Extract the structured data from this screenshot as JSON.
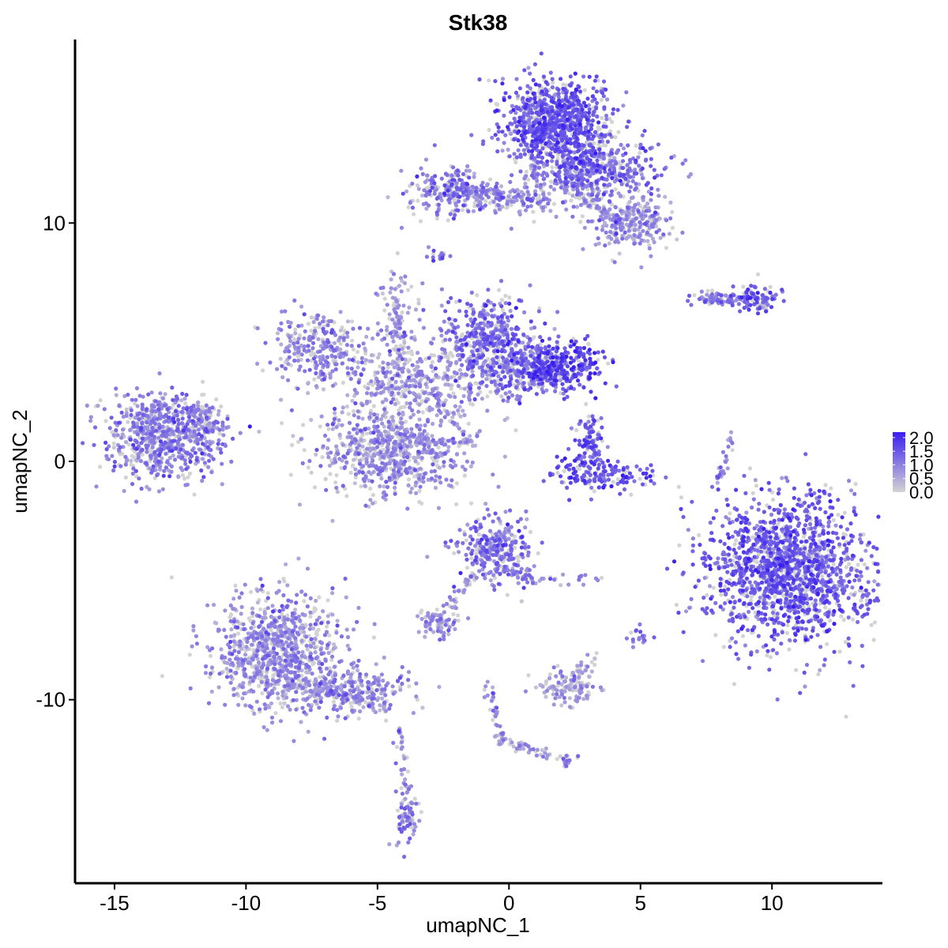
{
  "chart_data": {
    "type": "scatter",
    "title": "Stk38",
    "xlabel": "umapNC_1",
    "ylabel": "umapNC_2",
    "xlim": [
      -16.5,
      14.2
    ],
    "ylim": [
      -17.7,
      17.7
    ],
    "xticks": [
      -15,
      -10,
      -5,
      0,
      5,
      10
    ],
    "xtick_labels": [
      "-15",
      "-10",
      "-5",
      "0",
      "5",
      "10"
    ],
    "yticks": [
      -10,
      0,
      10
    ],
    "ytick_labels": [
      "-10",
      "0",
      "10"
    ],
    "grid": false,
    "legend": {
      "position": "right",
      "color_low": "#d3d3d3",
      "color_high": "#3a1ef0",
      "range": [
        0,
        2.2
      ],
      "ticks": [
        0.0,
        0.5,
        1.0,
        1.5,
        2.0
      ],
      "tick_labels": [
        "0.0",
        "0.5",
        "1.0",
        "1.5",
        "2.0"
      ]
    },
    "clusters": [
      {
        "cx": -13.2,
        "cy": 1.0,
        "sx": 1.1,
        "sy": 0.9,
        "n": 700,
        "expr": 1.0
      },
      {
        "cx": -11.8,
        "cy": 1.8,
        "sx": 0.5,
        "sy": 0.4,
        "n": 90,
        "expr": 0.9
      },
      {
        "cx": -7.2,
        "cy": 4.8,
        "sx": 0.9,
        "sy": 0.7,
        "n": 260,
        "expr": 0.9
      },
      {
        "cx": -4.5,
        "cy": 0.3,
        "sx": 1.4,
        "sy": 0.9,
        "n": 650,
        "expr": 0.8
      },
      {
        "cx": -3.6,
        "cy": 3.4,
        "sx": 1.6,
        "sy": 0.9,
        "n": 420,
        "expr": 0.7
      },
      {
        "cx": -4.2,
        "cy": 6.0,
        "sx": 0.4,
        "sy": 1.3,
        "n": 80,
        "expr": 0.8
      },
      {
        "cx": -0.8,
        "cy": 5.2,
        "sx": 0.9,
        "sy": 0.9,
        "n": 420,
        "expr": 1.2
      },
      {
        "cx": 1.9,
        "cy": 4.0,
        "sx": 0.9,
        "sy": 0.5,
        "n": 320,
        "expr": 1.7
      },
      {
        "cx": 0.5,
        "cy": 3.8,
        "sx": 0.9,
        "sy": 0.5,
        "n": 220,
        "expr": 1.1
      },
      {
        "cx": 1.7,
        "cy": 14.2,
        "sx": 1.0,
        "sy": 0.9,
        "n": 900,
        "expr": 1.4
      },
      {
        "cx": 3.3,
        "cy": 12.2,
        "sx": 1.2,
        "sy": 0.6,
        "n": 450,
        "expr": 1.2
      },
      {
        "cx": 4.6,
        "cy": 10.0,
        "sx": 0.8,
        "sy": 0.6,
        "n": 250,
        "expr": 0.8
      },
      {
        "cx": -2.2,
        "cy": 11.3,
        "sx": 0.8,
        "sy": 0.5,
        "n": 200,
        "expr": 1.1
      },
      {
        "cx": 0.0,
        "cy": 11.0,
        "sx": 1.2,
        "sy": 0.3,
        "n": 120,
        "expr": 0.9
      },
      {
        "cx": 3.4,
        "cy": -0.6,
        "sx": 0.9,
        "sy": 0.35,
        "n": 160,
        "expr": 1.5
      },
      {
        "cx": 3.0,
        "cy": 0.8,
        "sx": 0.35,
        "sy": 0.6,
        "n": 80,
        "expr": 1.5
      },
      {
        "cx": 10.6,
        "cy": -4.6,
        "sx": 1.6,
        "sy": 1.5,
        "n": 1600,
        "expr": 1.4
      },
      {
        "cx": -8.8,
        "cy": -8.0,
        "sx": 1.2,
        "sy": 1.2,
        "n": 900,
        "expr": 0.8
      },
      {
        "cx": -6.0,
        "cy": -9.6,
        "sx": 1.2,
        "sy": 0.5,
        "n": 260,
        "expr": 0.8
      },
      {
        "cx": -3.9,
        "cy": -15.0,
        "sx": 0.25,
        "sy": 0.5,
        "n": 70,
        "expr": 1.0
      },
      {
        "cx": -0.5,
        "cy": -3.7,
        "sx": 0.7,
        "sy": 0.7,
        "n": 300,
        "expr": 1.1
      },
      {
        "cx": -2.7,
        "cy": -6.8,
        "sx": 0.4,
        "sy": 0.35,
        "n": 70,
        "expr": 0.9
      },
      {
        "cx": 2.3,
        "cy": -9.5,
        "sx": 0.6,
        "sy": 0.35,
        "n": 110,
        "expr": 0.6
      },
      {
        "cx": 9.4,
        "cy": 6.8,
        "sx": 0.5,
        "sy": 0.3,
        "n": 90,
        "expr": 1.4
      },
      {
        "cx": 7.9,
        "cy": 6.8,
        "sx": 0.6,
        "sy": 0.15,
        "n": 50,
        "expr": 1.0
      },
      {
        "cx": -2.7,
        "cy": 8.6,
        "sx": 0.2,
        "sy": 0.2,
        "n": 15,
        "expr": 1.1
      },
      {
        "cx": 2.3,
        "cy": -12.6,
        "sx": 0.2,
        "sy": 0.2,
        "n": 15,
        "expr": 1.0
      },
      {
        "cx": 4.9,
        "cy": -7.4,
        "sx": 0.25,
        "sy": 0.2,
        "n": 18,
        "expr": 1.0
      }
    ],
    "strands": [
      {
        "x1": -11.6,
        "y1": 1.4,
        "x2": -10.9,
        "y2": 1.4,
        "n": 15,
        "expr": 0.9
      },
      {
        "x1": -4.2,
        "y1": 1.0,
        "x2": -1.4,
        "y2": 0.7,
        "n": 40,
        "expr": 0.7
      },
      {
        "x1": -4.2,
        "y1": 4.0,
        "x2": -4.3,
        "y2": 6.9,
        "n": 35,
        "expr": 0.8
      },
      {
        "x1": -2.9,
        "y1": 3.0,
        "x2": -1.4,
        "y2": 0.7,
        "n": 30,
        "expr": 0.8
      },
      {
        "x1": -8.3,
        "y1": -9.3,
        "x2": -4.5,
        "y2": -10.4,
        "n": 80,
        "expr": 0.8
      },
      {
        "x1": -4.2,
        "y1": -11.2,
        "x2": -3.8,
        "y2": -14.3,
        "n": 40,
        "expr": 0.8
      },
      {
        "x1": -2.6,
        "y1": -6.8,
        "x2": -1.2,
        "y2": -4.5,
        "n": 45,
        "expr": 0.7
      },
      {
        "x1": -0.1,
        "y1": -4.5,
        "x2": 1.2,
        "y2": -5.2,
        "n": 30,
        "expr": 0.9
      },
      {
        "x1": -0.7,
        "y1": -9.3,
        "x2": -0.3,
        "y2": -11.8,
        "n": 40,
        "expr": 0.7
      },
      {
        "x1": -0.3,
        "y1": -11.8,
        "x2": 2.4,
        "y2": -12.6,
        "n": 40,
        "expr": 0.6
      },
      {
        "x1": 2.3,
        "y1": -9.5,
        "x2": 3.3,
        "y2": -8.0,
        "n": 25,
        "expr": 0.7
      },
      {
        "x1": -1.1,
        "y1": 11.4,
        "x2": 1.2,
        "y2": 11.0,
        "n": 40,
        "expr": 0.9
      },
      {
        "x1": 2.0,
        "y1": 11.8,
        "x2": 4.4,
        "y2": 9.8,
        "n": 60,
        "expr": 0.8
      },
      {
        "x1": 0.9,
        "y1": 12.8,
        "x2": 1.4,
        "y2": 10.7,
        "n": 30,
        "expr": 0.8
      },
      {
        "x1": 8.4,
        "y1": 1.0,
        "x2": 7.9,
        "y2": -1.2,
        "n": 25,
        "expr": 0.8
      },
      {
        "x1": 7.6,
        "y1": 6.9,
        "x2": 9.0,
        "y2": 6.7,
        "n": 25,
        "expr": 1.0
      },
      {
        "x1": 1.4,
        "y1": -5.0,
        "x2": 3.5,
        "y2": -4.9,
        "n": 18,
        "expr": 0.8
      },
      {
        "x1": 3.0,
        "y1": 1.8,
        "x2": 3.3,
        "y2": 0.2,
        "n": 20,
        "expr": 1.4
      },
      {
        "x1": -2.4,
        "y1": 11.6,
        "x2": -1.0,
        "y2": 11.2,
        "n": 25,
        "expr": 1.0
      }
    ]
  }
}
